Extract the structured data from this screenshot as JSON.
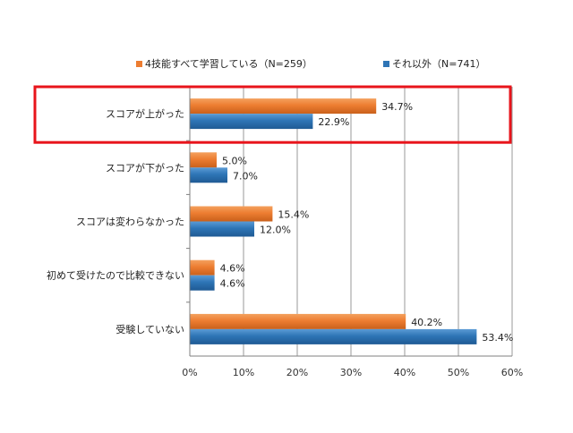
{
  "chart_data": {
    "type": "bar",
    "orientation": "horizontal",
    "categories": [
      "スコアが上がった",
      "スコアが下がった",
      "スコアは変わらなかった",
      "初めて受けたので比較できない",
      "受験していない"
    ],
    "series": [
      {
        "name": "4技能すべて学習している（N=259）",
        "color": "#ED7D31",
        "values": [
          34.7,
          5.0,
          15.4,
          4.6,
          40.2
        ],
        "labels": [
          "34.7%",
          "5.0%",
          "15.4%",
          "4.6%",
          "40.2%"
        ]
      },
      {
        "name": "それ以外（N=741）",
        "color": "#2E75B6",
        "values": [
          22.9,
          7.0,
          12.0,
          4.6,
          53.4
        ],
        "labels": [
          "22.9%",
          "7.0%",
          "12.0%",
          "4.6%",
          "53.4%"
        ]
      }
    ],
    "xlim": [
      0,
      60
    ],
    "x_ticks": [
      "0%",
      "10%",
      "20%",
      "30%",
      "40%",
      "50%",
      "60%"
    ],
    "grid": true,
    "legend_position": "top",
    "highlight_category": "スコアが上がった",
    "highlight_color": "#E8141B"
  }
}
